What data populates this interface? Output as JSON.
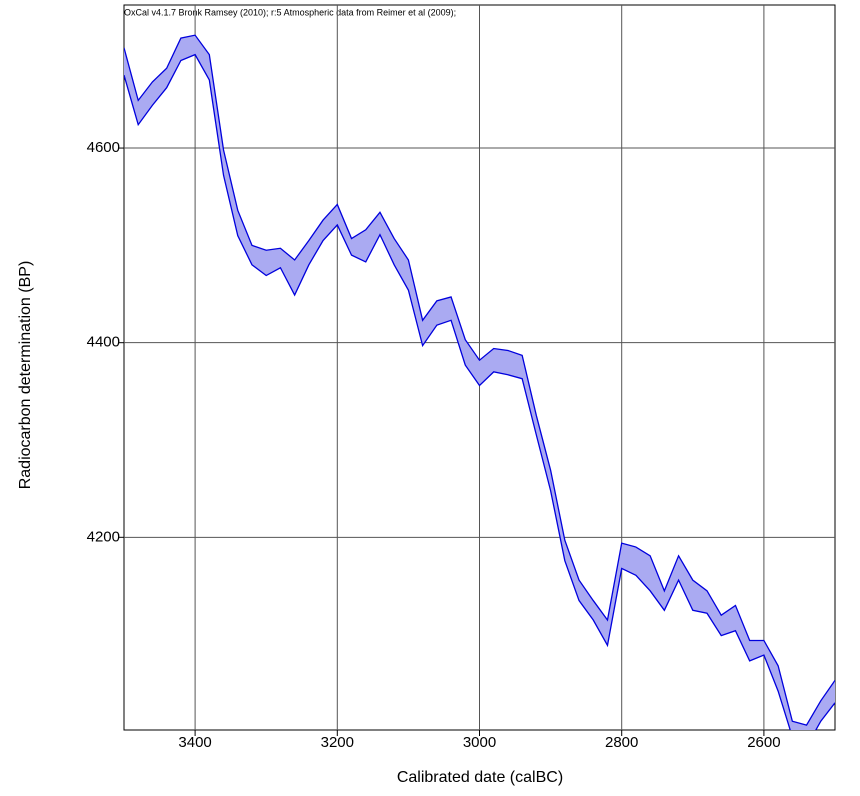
{
  "chart_data": {
    "type": "band",
    "title": "OxCal v4.1.7 Bronk Ramsey (2010); r:5 Atmospheric data from Reimer et al (2009);",
    "x_label": "Calibrated date (calBC)",
    "y_label": "Radiocarbon determination (BP)",
    "xlim": [
      3500,
      2500
    ],
    "ylim": [
      4002,
      4747
    ],
    "xticks": [
      3400,
      3200,
      3000,
      2800,
      2600
    ],
    "yticks": [
      4200,
      4400,
      4600
    ],
    "grid": true,
    "fill_color": "#aaaaf2",
    "x": [
      3500,
      3480,
      3460,
      3440,
      3420,
      3400,
      3380,
      3360,
      3340,
      3320,
      3300,
      3280,
      3260,
      3240,
      3220,
      3200,
      3180,
      3160,
      3140,
      3120,
      3100,
      3080,
      3060,
      3040,
      3020,
      3000,
      2980,
      2960,
      2940,
      2920,
      2900,
      2880,
      2860,
      2840,
      2820,
      2800,
      2780,
      2760,
      2740,
      2720,
      2700,
      2680,
      2660,
      2640,
      2620,
      2600,
      2580,
      2560,
      2540,
      2520,
      2500
    ],
    "series": [
      {
        "color": "#0000dd",
        "values": [
          4703,
          4649,
          4668,
          4682,
          4713,
          4716,
          4696,
          4598,
          4536,
          4500,
          4495,
          4497,
          4485,
          4505,
          4526,
          4542,
          4507,
          4516,
          4534,
          4507,
          4485,
          4423,
          4443,
          4447,
          4403,
          4382,
          4394,
          4392,
          4387,
          4325,
          4269,
          4197,
          4156,
          4135,
          4115,
          4194,
          4190,
          4181,
          4145,
          4181,
          4156,
          4145,
          4120,
          4130,
          4094,
          4094,
          4068,
          4011,
          4007,
          4032,
          4053
        ]
      },
      {
        "color": "#0000dd",
        "values": [
          4675,
          4624,
          4644,
          4662,
          4690,
          4696,
          4670,
          4572,
          4510,
          4480,
          4469,
          4477,
          4449,
          4480,
          4505,
          4521,
          4490,
          4483,
          4511,
          4480,
          4454,
          4397,
          4418,
          4423,
          4377,
          4356,
          4370,
          4367,
          4363,
          4305,
          4248,
          4176,
          4135,
          4115,
          4089,
          4168,
          4161,
          4145,
          4125,
          4156,
          4125,
          4122,
          4099,
          4104,
          4073,
          4079,
          4042,
          3995,
          3985,
          4011,
          4030
        ]
      }
    ]
  }
}
